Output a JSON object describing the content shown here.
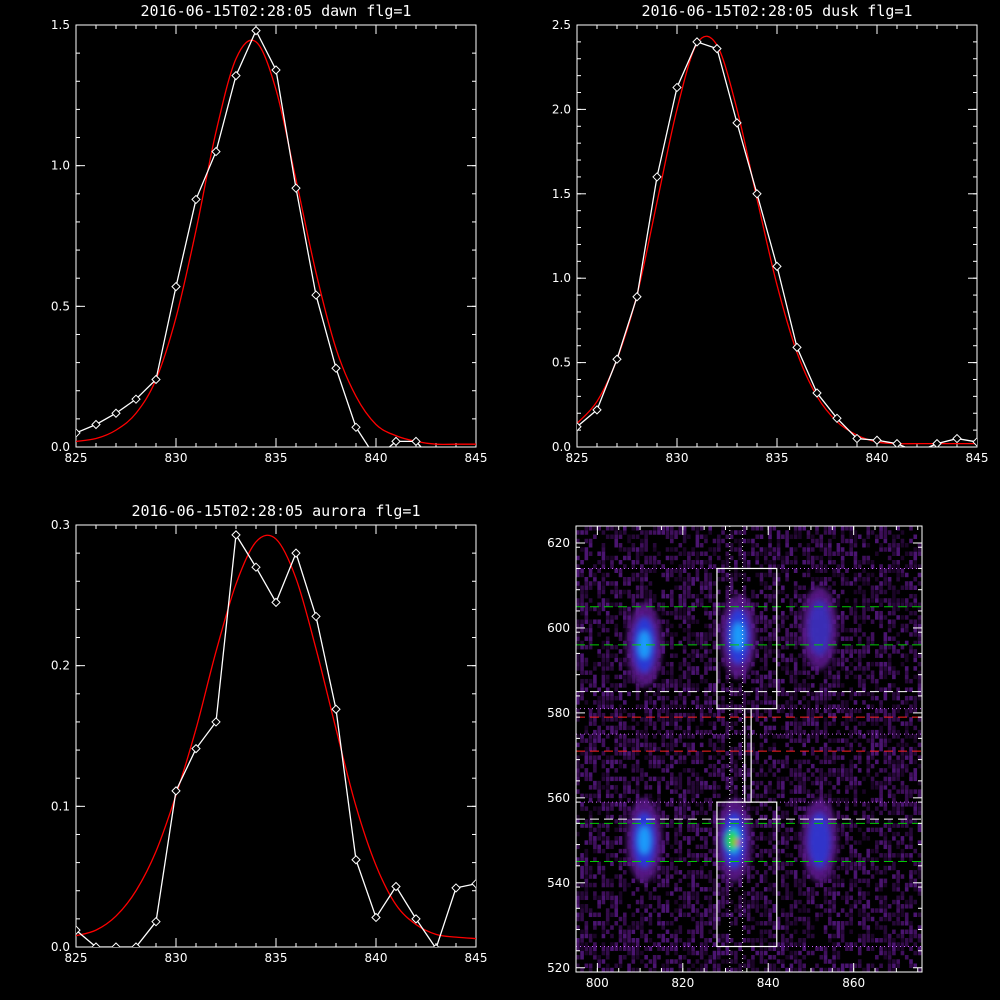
{
  "chart_data": [
    {
      "type": "line",
      "title": "2016-06-15T02:28:05 dawn flg=1",
      "xlim": [
        825,
        845
      ],
      "ylim": [
        0,
        1.5
      ],
      "xticks": [
        "825",
        "830",
        "835",
        "840",
        "845"
      ],
      "yticks": [
        "0.0",
        "0.5",
        "1.0",
        "1.5"
      ],
      "series": [
        {
          "color": "#ffffff",
          "marker": "diamond",
          "x": [
            825,
            826,
            827,
            828,
            829,
            830,
            831,
            832,
            833,
            834,
            835,
            836,
            837,
            838,
            839,
            840,
            841,
            842,
            843,
            844,
            845
          ],
          "y": [
            0.05,
            0.08,
            0.12,
            0.17,
            0.24,
            0.57,
            0.88,
            1.05,
            1.32,
            1.48,
            1.34,
            0.92,
            0.54,
            0.28,
            0.07,
            -0.04,
            0.02,
            0.02,
            -0.06,
            -0.06,
            -0.03
          ]
        },
        {
          "color": "#ff0000",
          "type": "gaussian-fit",
          "x": [
            825,
            826,
            827,
            828,
            829,
            830,
            831,
            832,
            833,
            834,
            835,
            836,
            837,
            838,
            839,
            840,
            841,
            842,
            843,
            844,
            845
          ],
          "y": [
            0.02,
            0.03,
            0.06,
            0.12,
            0.24,
            0.46,
            0.77,
            1.12,
            1.38,
            1.44,
            1.27,
            0.95,
            0.62,
            0.35,
            0.18,
            0.08,
            0.04,
            0.02,
            0.01,
            0.01,
            0.01
          ]
        }
      ]
    },
    {
      "type": "line",
      "title": "2016-06-15T02:28:05 dusk flg=1",
      "xlim": [
        825,
        845
      ],
      "ylim": [
        0,
        2.5
      ],
      "xticks": [
        "825",
        "830",
        "835",
        "840",
        "845"
      ],
      "yticks": [
        "0.0",
        "0.5",
        "1.0",
        "1.5",
        "2.0",
        "2.5"
      ],
      "series": [
        {
          "color": "#ffffff",
          "marker": "diamond",
          "x": [
            825,
            826,
            827,
            828,
            829,
            830,
            831,
            832,
            833,
            834,
            835,
            836,
            837,
            838,
            839,
            840,
            841,
            842,
            843,
            844,
            845
          ],
          "y": [
            0.12,
            0.22,
            0.52,
            0.89,
            1.6,
            2.13,
            2.4,
            2.36,
            1.92,
            1.5,
            1.07,
            0.59,
            0.32,
            0.17,
            0.05,
            0.04,
            0.02,
            -0.03,
            0.02,
            0.05,
            0.03
          ]
        },
        {
          "color": "#ff0000",
          "type": "gaussian-fit",
          "x": [
            825,
            826,
            827,
            828,
            829,
            830,
            831,
            832,
            833,
            834,
            835,
            836,
            837,
            838,
            839,
            840,
            841,
            842,
            843,
            844,
            845
          ],
          "y": [
            0.14,
            0.27,
            0.52,
            0.9,
            1.45,
            2.0,
            2.39,
            2.38,
            2.0,
            1.47,
            0.96,
            0.56,
            0.3,
            0.15,
            0.07,
            0.03,
            0.02,
            0.02,
            0.02,
            0.02,
            0.02
          ]
        }
      ]
    },
    {
      "type": "line",
      "title": "2016-06-15T02:28:05 aurora flg=1",
      "xlim": [
        825,
        845
      ],
      "ylim": [
        0,
        0.3
      ],
      "xticks": [
        "825",
        "830",
        "835",
        "840",
        "845"
      ],
      "yticks": [
        "0.0",
        "0.1",
        "0.2",
        "0.3"
      ],
      "series": [
        {
          "color": "#ffffff",
          "marker": "diamond",
          "x": [
            825,
            826,
            827,
            828,
            829,
            830,
            831,
            832,
            833,
            834,
            835,
            836,
            837,
            838,
            839,
            840,
            841,
            842,
            843,
            844,
            845
          ],
          "y": [
            0.012,
            0.0,
            0.0,
            0.0,
            0.018,
            0.111,
            0.141,
            0.16,
            0.293,
            0.27,
            0.245,
            0.28,
            0.235,
            0.169,
            0.062,
            0.021,
            0.043,
            0.02,
            -0.001,
            0.042,
            0.045
          ]
        },
        {
          "color": "#ff0000",
          "type": "gaussian-fit",
          "x": [
            825,
            826,
            827,
            828,
            829,
            830,
            831,
            832,
            833,
            834,
            835,
            836,
            837,
            838,
            839,
            840,
            841,
            842,
            843,
            844,
            845
          ],
          "y": [
            0.008,
            0.012,
            0.022,
            0.04,
            0.068,
            0.108,
            0.155,
            0.21,
            0.258,
            0.288,
            0.29,
            0.262,
            0.212,
            0.155,
            0.1,
            0.058,
            0.03,
            0.016,
            0.009,
            0.007,
            0.006
          ]
        }
      ]
    },
    {
      "type": "heatmap",
      "xlim": [
        795,
        876
      ],
      "ylim": [
        519,
        624
      ],
      "xticks": [
        "800",
        "820",
        "840",
        "860"
      ],
      "yticks": [
        "520",
        "540",
        "560",
        "580",
        "600",
        "620"
      ],
      "blobs": [
        {
          "x": 811,
          "y": 596,
          "intensity": 0.55
        },
        {
          "x": 833,
          "y": 598,
          "intensity": 0.62
        },
        {
          "x": 852,
          "y": 600,
          "intensity": 0.22
        },
        {
          "x": 811,
          "y": 550,
          "intensity": 0.58
        },
        {
          "x": 832,
          "y": 550,
          "intensity": 1.0
        },
        {
          "x": 852,
          "y": 550,
          "intensity": 0.45
        }
      ],
      "boxes": [
        {
          "x0": 828,
          "x1": 842,
          "y0": 581,
          "y1": 614
        },
        {
          "x0": 828,
          "x1": 842,
          "y0": 525,
          "y1": 559
        },
        {
          "x0": 834.5,
          "x1": 836,
          "y0": 559,
          "y1": 581
        }
      ],
      "hlines": [
        {
          "y": 614,
          "color": "#cc66ff",
          "style": "dotted"
        },
        {
          "y": 605,
          "color": "#00cc00",
          "style": "dashed"
        },
        {
          "y": 596,
          "color": "#00cc00",
          "style": "dashed"
        },
        {
          "y": 585,
          "color": "#ffffff",
          "style": "dashed"
        },
        {
          "y": 581,
          "color": "#cc66ff",
          "style": "dotted"
        },
        {
          "y": 579,
          "color": "#ff2222",
          "style": "dashed"
        },
        {
          "y": 575,
          "color": "#cc66ff",
          "style": "dotted"
        },
        {
          "y": 571,
          "color": "#ff2222",
          "style": "dashed"
        },
        {
          "y": 559,
          "color": "#cc66ff",
          "style": "dotted"
        },
        {
          "y": 555,
          "color": "#ffffff",
          "style": "dashed"
        },
        {
          "y": 554,
          "color": "#00cc00",
          "style": "dashed"
        },
        {
          "y": 545,
          "color": "#00cc00",
          "style": "dashed"
        },
        {
          "y": 525,
          "color": "#cc66ff",
          "style": "dotted"
        }
      ],
      "vlines": [
        {
          "x": 831,
          "color": "#ffffff",
          "style": "dotted"
        },
        {
          "x": 834,
          "color": "#ffffff",
          "style": "dotted"
        }
      ]
    }
  ]
}
